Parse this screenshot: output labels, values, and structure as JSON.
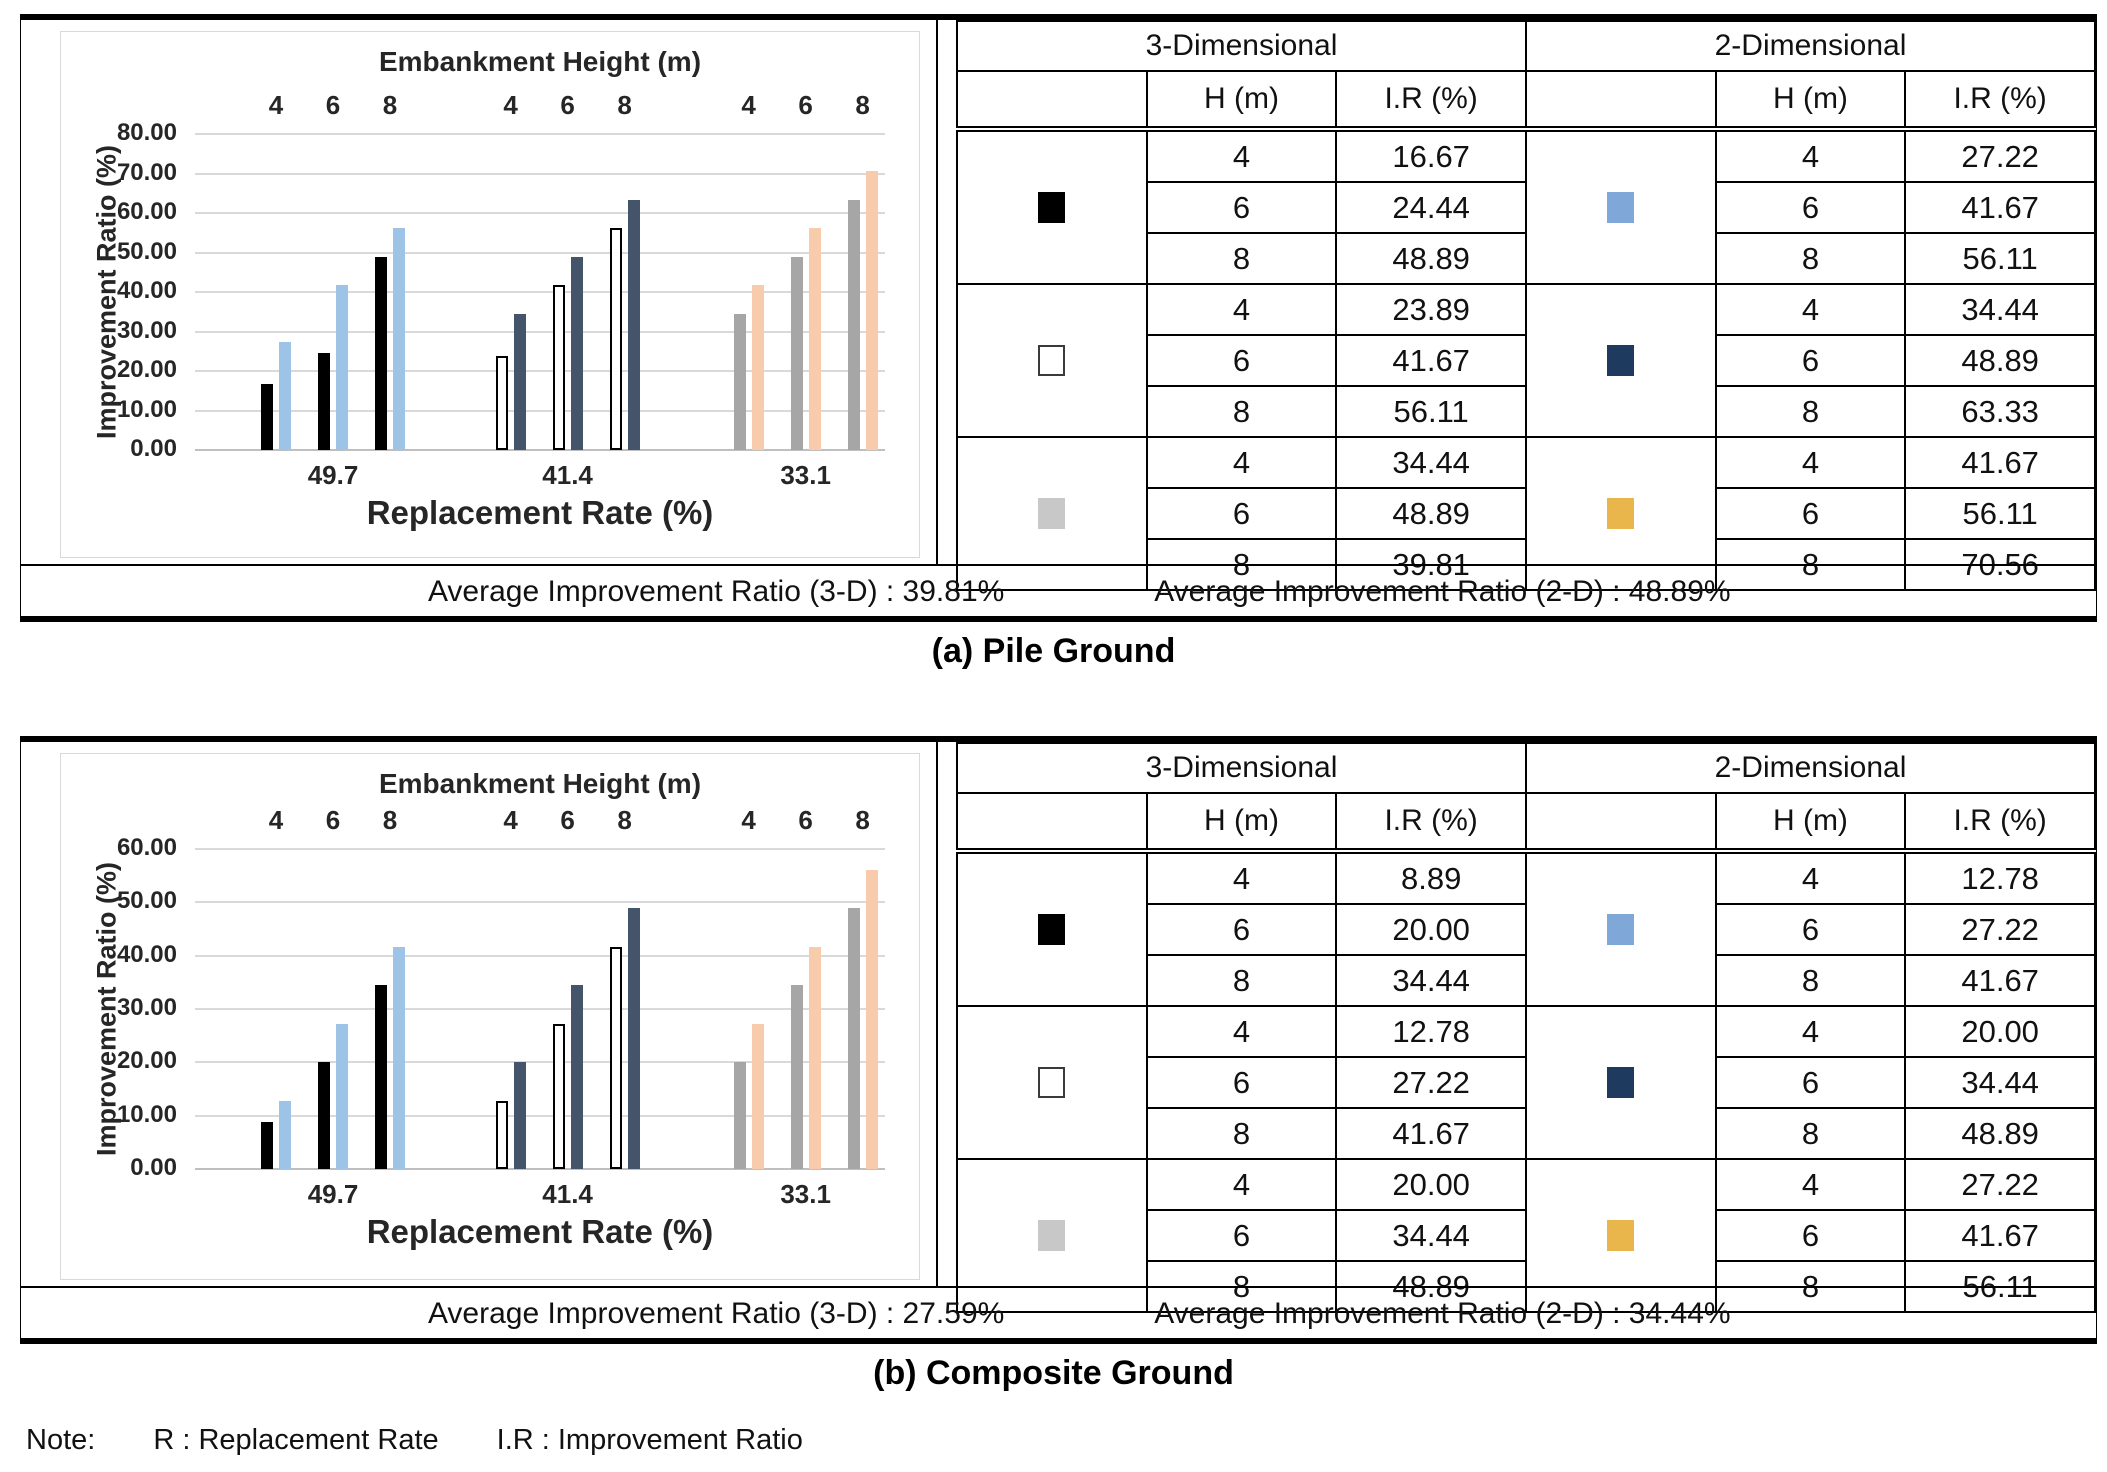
{
  "note": {
    "label": "Note:",
    "item1": "R : Replacement Rate",
    "item2": "I.R : Improvement Ratio"
  },
  "colors": {
    "swatch": {
      "black": "#000000",
      "white": "#ffffff",
      "gray": "#c8c8c8",
      "lightblue": "#7fa8d9",
      "navy": "#1f3a5f",
      "gold": "#e9b64b"
    },
    "bars": {
      "black": "#000000",
      "white": "#ffffff",
      "gray": "#a6a6a6",
      "lightblue": "#9dc3e6",
      "navy": "#44546a",
      "peach": "#f8cbad"
    },
    "gridline": "#d9d9d9"
  },
  "blocks": {
    "a": {
      "caption": "(a) Pile Ground",
      "avg_3d": "Average Improvement Ratio (3-D) : 39.81%",
      "avg_2d": "Average Improvement Ratio (2-D) : 48.89%",
      "table": {
        "title_3d": "3-Dimensional",
        "title_2d": "2-Dimensional",
        "col_h": "H (m)",
        "col_ir": "I.R (%)",
        "groups_3d": [
          {
            "swatch": "black",
            "rows": [
              [
                "4",
                "16.67"
              ],
              [
                "6",
                "24.44"
              ],
              [
                "8",
                "48.89"
              ]
            ]
          },
          {
            "swatch": "white",
            "rows": [
              [
                "4",
                "23.89"
              ],
              [
                "6",
                "41.67"
              ],
              [
                "8",
                "56.11"
              ]
            ]
          },
          {
            "swatch": "gray",
            "rows": [
              [
                "4",
                "34.44"
              ],
              [
                "6",
                "48.89"
              ],
              [
                "8",
                "39.81"
              ]
            ]
          }
        ],
        "groups_2d": [
          {
            "swatch": "lightblue",
            "rows": [
              [
                "4",
                "27.22"
              ],
              [
                "6",
                "41.67"
              ],
              [
                "8",
                "56.11"
              ]
            ]
          },
          {
            "swatch": "navy",
            "rows": [
              [
                "4",
                "34.44"
              ],
              [
                "6",
                "48.89"
              ],
              [
                "8",
                "63.33"
              ]
            ]
          },
          {
            "swatch": "gold",
            "rows": [
              [
                "4",
                "41.67"
              ],
              [
                "6",
                "56.11"
              ],
              [
                "8",
                "70.56"
              ]
            ]
          }
        ]
      }
    },
    "b": {
      "caption": "(b) Composite Ground",
      "avg_3d": "Average Improvement Ratio (3-D) : 27.59%",
      "avg_2d": "Average Improvement Ratio (2-D) : 34.44%",
      "table": {
        "title_3d": "3-Dimensional",
        "title_2d": "2-Dimensional",
        "col_h": "H (m)",
        "col_ir": "I.R (%)",
        "groups_3d": [
          {
            "swatch": "black",
            "rows": [
              [
                "4",
                "8.89"
              ],
              [
                "6",
                "20.00"
              ],
              [
                "8",
                "34.44"
              ]
            ]
          },
          {
            "swatch": "white",
            "rows": [
              [
                "4",
                "12.78"
              ],
              [
                "6",
                "27.22"
              ],
              [
                "8",
                "41.67"
              ]
            ]
          },
          {
            "swatch": "gray",
            "rows": [
              [
                "4",
                "20.00"
              ],
              [
                "6",
                "34.44"
              ],
              [
                "8",
                "48.89"
              ]
            ]
          }
        ],
        "groups_2d": [
          {
            "swatch": "lightblue",
            "rows": [
              [
                "4",
                "12.78"
              ],
              [
                "6",
                "27.22"
              ],
              [
                "8",
                "41.67"
              ]
            ]
          },
          {
            "swatch": "navy",
            "rows": [
              [
                "4",
                "20.00"
              ],
              [
                "6",
                "34.44"
              ],
              [
                "8",
                "48.89"
              ]
            ]
          },
          {
            "swatch": "gold",
            "rows": [
              [
                "4",
                "27.22"
              ],
              [
                "6",
                "41.67"
              ],
              [
                "8",
                "56.11"
              ]
            ]
          }
        ]
      }
    }
  },
  "chart_data": [
    {
      "type": "bar",
      "block": "a",
      "title": "Embankment Height (m)",
      "ylabel": "Improvement Ratio (%)",
      "xlabel": "Replacement Rate (%)",
      "ylim": [
        0,
        80
      ],
      "yticks": [
        "80.00",
        "70.00",
        "60.00",
        "50.00",
        "40.00",
        "30.00",
        "20.00",
        "10.00",
        "0.00"
      ],
      "height_labels": [
        "4",
        "6",
        "8"
      ],
      "categories": [
        "49.7",
        "41.4",
        "33.1"
      ],
      "legend_position": "none",
      "grid": true,
      "groups": [
        {
          "category": "49.7",
          "bars_3d": {
            "color": "black",
            "outlined": false,
            "values": [
              16.67,
              24.44,
              48.89
            ]
          },
          "bars_2d": {
            "color": "lightblue",
            "values": [
              27.22,
              41.67,
              56.11
            ]
          }
        },
        {
          "category": "41.4",
          "bars_3d": {
            "color": "white",
            "outlined": true,
            "values": [
              23.89,
              41.67,
              56.11
            ]
          },
          "bars_2d": {
            "color": "navy",
            "values": [
              34.44,
              48.89,
              63.33
            ]
          }
        },
        {
          "category": "33.1",
          "bars_3d": {
            "color": "gray",
            "outlined": false,
            "values": [
              34.44,
              48.89,
              63.33
            ]
          },
          "bars_2d": {
            "color": "peach",
            "values": [
              41.67,
              56.11,
              70.56
            ]
          }
        }
      ]
    },
    {
      "type": "bar",
      "block": "b",
      "title": "Embankment Height (m)",
      "ylabel": "Improvement Ratio (%)",
      "xlabel": "Replacement Rate (%)",
      "ylim": [
        0,
        60
      ],
      "yticks": [
        "60.00",
        "50.00",
        "40.00",
        "30.00",
        "20.00",
        "10.00",
        "0.00"
      ],
      "height_labels": [
        "4",
        "6",
        "8"
      ],
      "categories": [
        "49.7",
        "41.4",
        "33.1"
      ],
      "legend_position": "none",
      "grid": true,
      "groups": [
        {
          "category": "49.7",
          "bars_3d": {
            "color": "black",
            "outlined": false,
            "values": [
              8.89,
              20.0,
              34.44
            ]
          },
          "bars_2d": {
            "color": "lightblue",
            "values": [
              12.78,
              27.22,
              41.67
            ]
          }
        },
        {
          "category": "41.4",
          "bars_3d": {
            "color": "white",
            "outlined": true,
            "values": [
              12.78,
              27.22,
              41.67
            ]
          },
          "bars_2d": {
            "color": "navy",
            "values": [
              20.0,
              34.44,
              48.89
            ]
          }
        },
        {
          "category": "33.1",
          "bars_3d": {
            "color": "gray",
            "outlined": false,
            "values": [
              20.0,
              34.44,
              48.89
            ]
          },
          "bars_2d": {
            "color": "peach",
            "values": [
              27.22,
              41.67,
              56.11
            ]
          }
        }
      ]
    }
  ]
}
